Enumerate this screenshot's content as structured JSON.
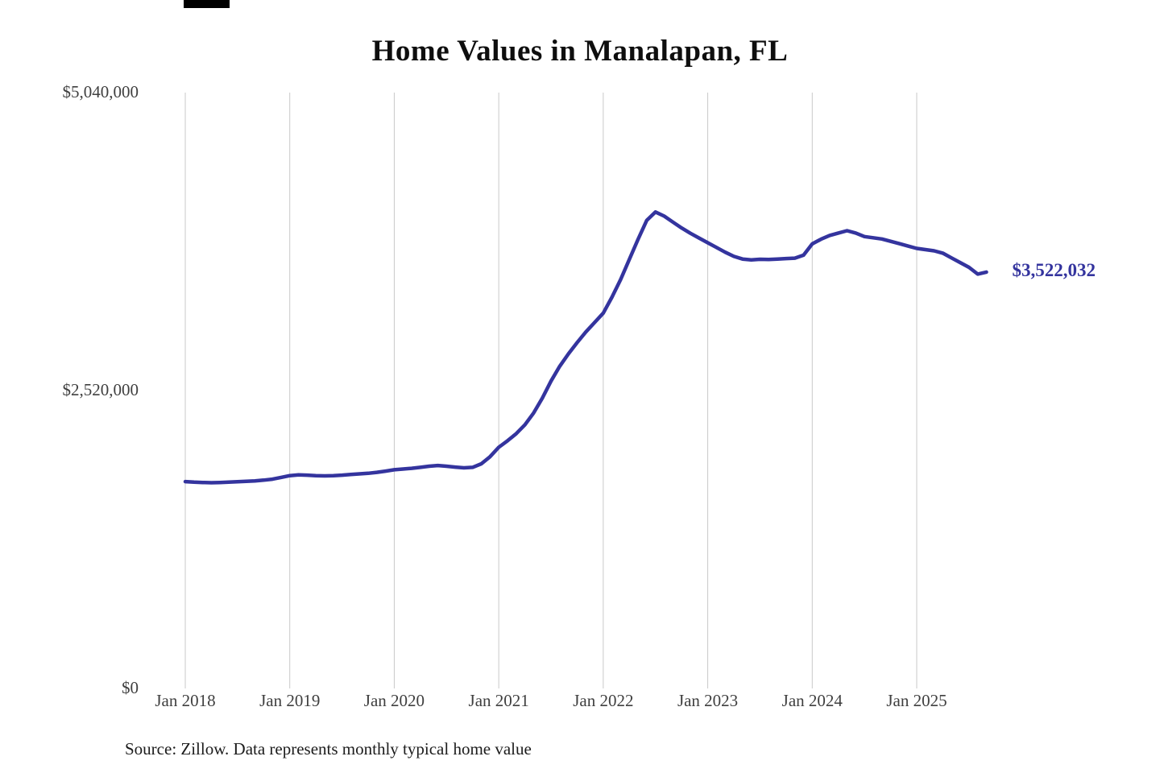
{
  "page": {
    "source_note": "Source: Zillow. Data represents monthly typical home value"
  },
  "colors": {
    "line": "#34349e",
    "grid": "#c9c9c9",
    "axis_text": "#3f3f3f",
    "title": "#0e0e0e",
    "annotation": "#34349e",
    "background": "#ffffff"
  },
  "chart_data": {
    "type": "line",
    "title": "Home Values in Manalapan, FL",
    "xlabel": "",
    "ylabel": "",
    "x": [
      "2018-01",
      "2018-02",
      "2018-03",
      "2018-04",
      "2018-05",
      "2018-06",
      "2018-07",
      "2018-08",
      "2018-09",
      "2018-10",
      "2018-11",
      "2018-12",
      "2019-01",
      "2019-02",
      "2019-03",
      "2019-04",
      "2019-05",
      "2019-06",
      "2019-07",
      "2019-08",
      "2019-09",
      "2019-10",
      "2019-11",
      "2019-12",
      "2020-01",
      "2020-02",
      "2020-03",
      "2020-04",
      "2020-05",
      "2020-06",
      "2020-07",
      "2020-08",
      "2020-09",
      "2020-10",
      "2020-11",
      "2020-12",
      "2021-01",
      "2021-02",
      "2021-03",
      "2021-04",
      "2021-05",
      "2021-06",
      "2021-07",
      "2021-08",
      "2021-09",
      "2021-10",
      "2021-11",
      "2021-12",
      "2022-01",
      "2022-02",
      "2022-03",
      "2022-04",
      "2022-05",
      "2022-06",
      "2022-07",
      "2022-08",
      "2022-09",
      "2022-10",
      "2022-11",
      "2022-12",
      "2023-01",
      "2023-02",
      "2023-03",
      "2023-04",
      "2023-05",
      "2023-06",
      "2023-07",
      "2023-08",
      "2023-09",
      "2023-10",
      "2023-11",
      "2023-12",
      "2024-01",
      "2024-02",
      "2024-03",
      "2024-04",
      "2024-05",
      "2024-06",
      "2024-07",
      "2024-08",
      "2024-09",
      "2024-10",
      "2024-11",
      "2024-12",
      "2025-01",
      "2025-02",
      "2025-03",
      "2025-04",
      "2025-05",
      "2025-06",
      "2025-07",
      "2025-08",
      "2025-09"
    ],
    "values": [
      1750000,
      1745000,
      1742000,
      1740000,
      1742000,
      1745000,
      1748000,
      1752000,
      1756000,
      1762000,
      1770000,
      1785000,
      1800000,
      1806000,
      1804000,
      1800000,
      1798000,
      1800000,
      1804000,
      1810000,
      1815000,
      1820000,
      1828000,
      1838000,
      1850000,
      1856000,
      1862000,
      1870000,
      1880000,
      1886000,
      1880000,
      1872000,
      1866000,
      1870000,
      1900000,
      1960000,
      2040000,
      2095000,
      2155000,
      2230000,
      2330000,
      2455000,
      2600000,
      2725000,
      2830000,
      2925000,
      3015000,
      3095000,
      3175000,
      3310000,
      3460000,
      3630000,
      3800000,
      3960000,
      4030000,
      3995000,
      3945000,
      3895000,
      3850000,
      3810000,
      3770000,
      3730000,
      3690000,
      3655000,
      3632000,
      3625000,
      3630000,
      3628000,
      3632000,
      3636000,
      3640000,
      3665000,
      3760000,
      3800000,
      3832000,
      3852000,
      3872000,
      3852000,
      3822000,
      3812000,
      3802000,
      3782000,
      3762000,
      3742000,
      3722000,
      3712000,
      3702000,
      3682000,
      3642000,
      3602000,
      3562000,
      3505000,
      3522032
    ],
    "x_tick_labels": [
      "Jan 2018",
      "Jan 2019",
      "Jan 2020",
      "Jan 2021",
      "Jan 2022",
      "Jan 2023",
      "Jan 2024",
      "Jan 2025"
    ],
    "y_ticks": [
      0,
      2520000,
      5040000
    ],
    "y_tick_labels": [
      "$0",
      "$2,520,000",
      "$5,040,000"
    ],
    "ylim": [
      0,
      5040000
    ],
    "grid": "vertical-only",
    "legend": "none",
    "end_annotation": {
      "text": "$3,522,032",
      "value": 3522032
    }
  }
}
